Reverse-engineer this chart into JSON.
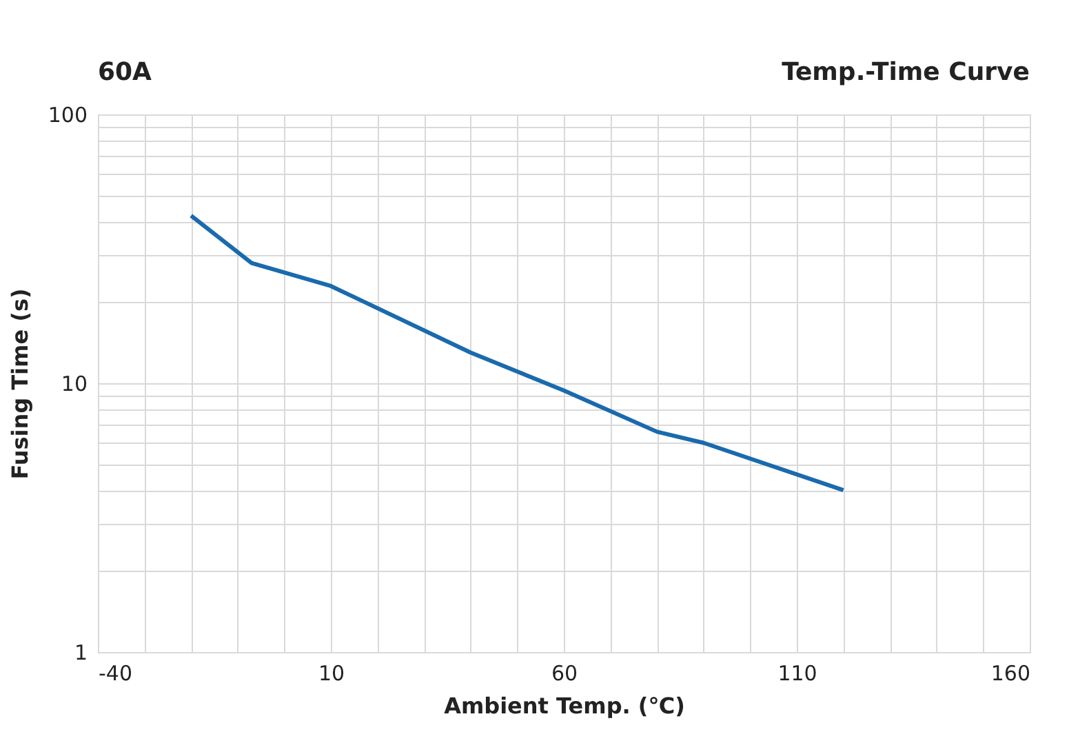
{
  "chart_data": {
    "type": "line",
    "title": "60A",
    "subtitle": "Temp.-Time Curve",
    "xlabel": "Ambient Temp. (℃)",
    "ylabel": "Fusing Time  (s)",
    "x": [
      -20,
      -7,
      10,
      40,
      60,
      80,
      90,
      120
    ],
    "series": [
      {
        "color": "#1a6aad",
        "values": [
          42,
          28,
          23,
          13,
          9.4,
          6.6,
          6,
          4
        ]
      }
    ],
    "xlim": [
      -40,
      160
    ],
    "ylim": [
      1,
      100
    ],
    "log": "y",
    "grid": true,
    "marker": "none",
    "line_style": "solid",
    "xticks": [
      -40,
      {
        "value": -30,
        "label": null
      },
      {
        "value": -20,
        "label": null
      },
      {
        "value": -10,
        "label": null
      },
      {
        "value": 0,
        "label": null
      },
      10,
      {
        "value": 20,
        "label": null
      },
      {
        "value": 30,
        "label": null
      },
      {
        "value": 40,
        "label": null
      },
      {
        "value": 50,
        "label": null
      },
      60,
      {
        "value": 70,
        "label": null
      },
      {
        "value": 80,
        "label": null
      },
      {
        "value": 90,
        "label": null
      },
      {
        "value": 100,
        "label": null
      },
      110,
      {
        "value": 120,
        "label": null
      },
      {
        "value": 130,
        "label": null
      },
      {
        "value": 140,
        "label": null
      },
      {
        "value": 150,
        "label": null
      },
      160
    ],
    "yticks": [
      1,
      {
        "value": 2,
        "label": null
      },
      {
        "value": 3,
        "label": null
      },
      {
        "value": 4,
        "label": null
      },
      {
        "value": 5,
        "label": null
      },
      {
        "value": 6,
        "label": null
      },
      {
        "value": 7,
        "label": null
      },
      {
        "value": 8,
        "label": null
      },
      {
        "value": 9,
        "label": null
      },
      10,
      {
        "value": 20,
        "label": null
      },
      {
        "value": 30,
        "label": null
      },
      {
        "value": 40,
        "label": null
      },
      {
        "value": 50,
        "label": null
      },
      {
        "value": 60,
        "label": null
      },
      {
        "value": 70,
        "label": null
      },
      {
        "value": 80,
        "label": null
      },
      {
        "value": 90,
        "label": null
      },
      100
    ]
  }
}
